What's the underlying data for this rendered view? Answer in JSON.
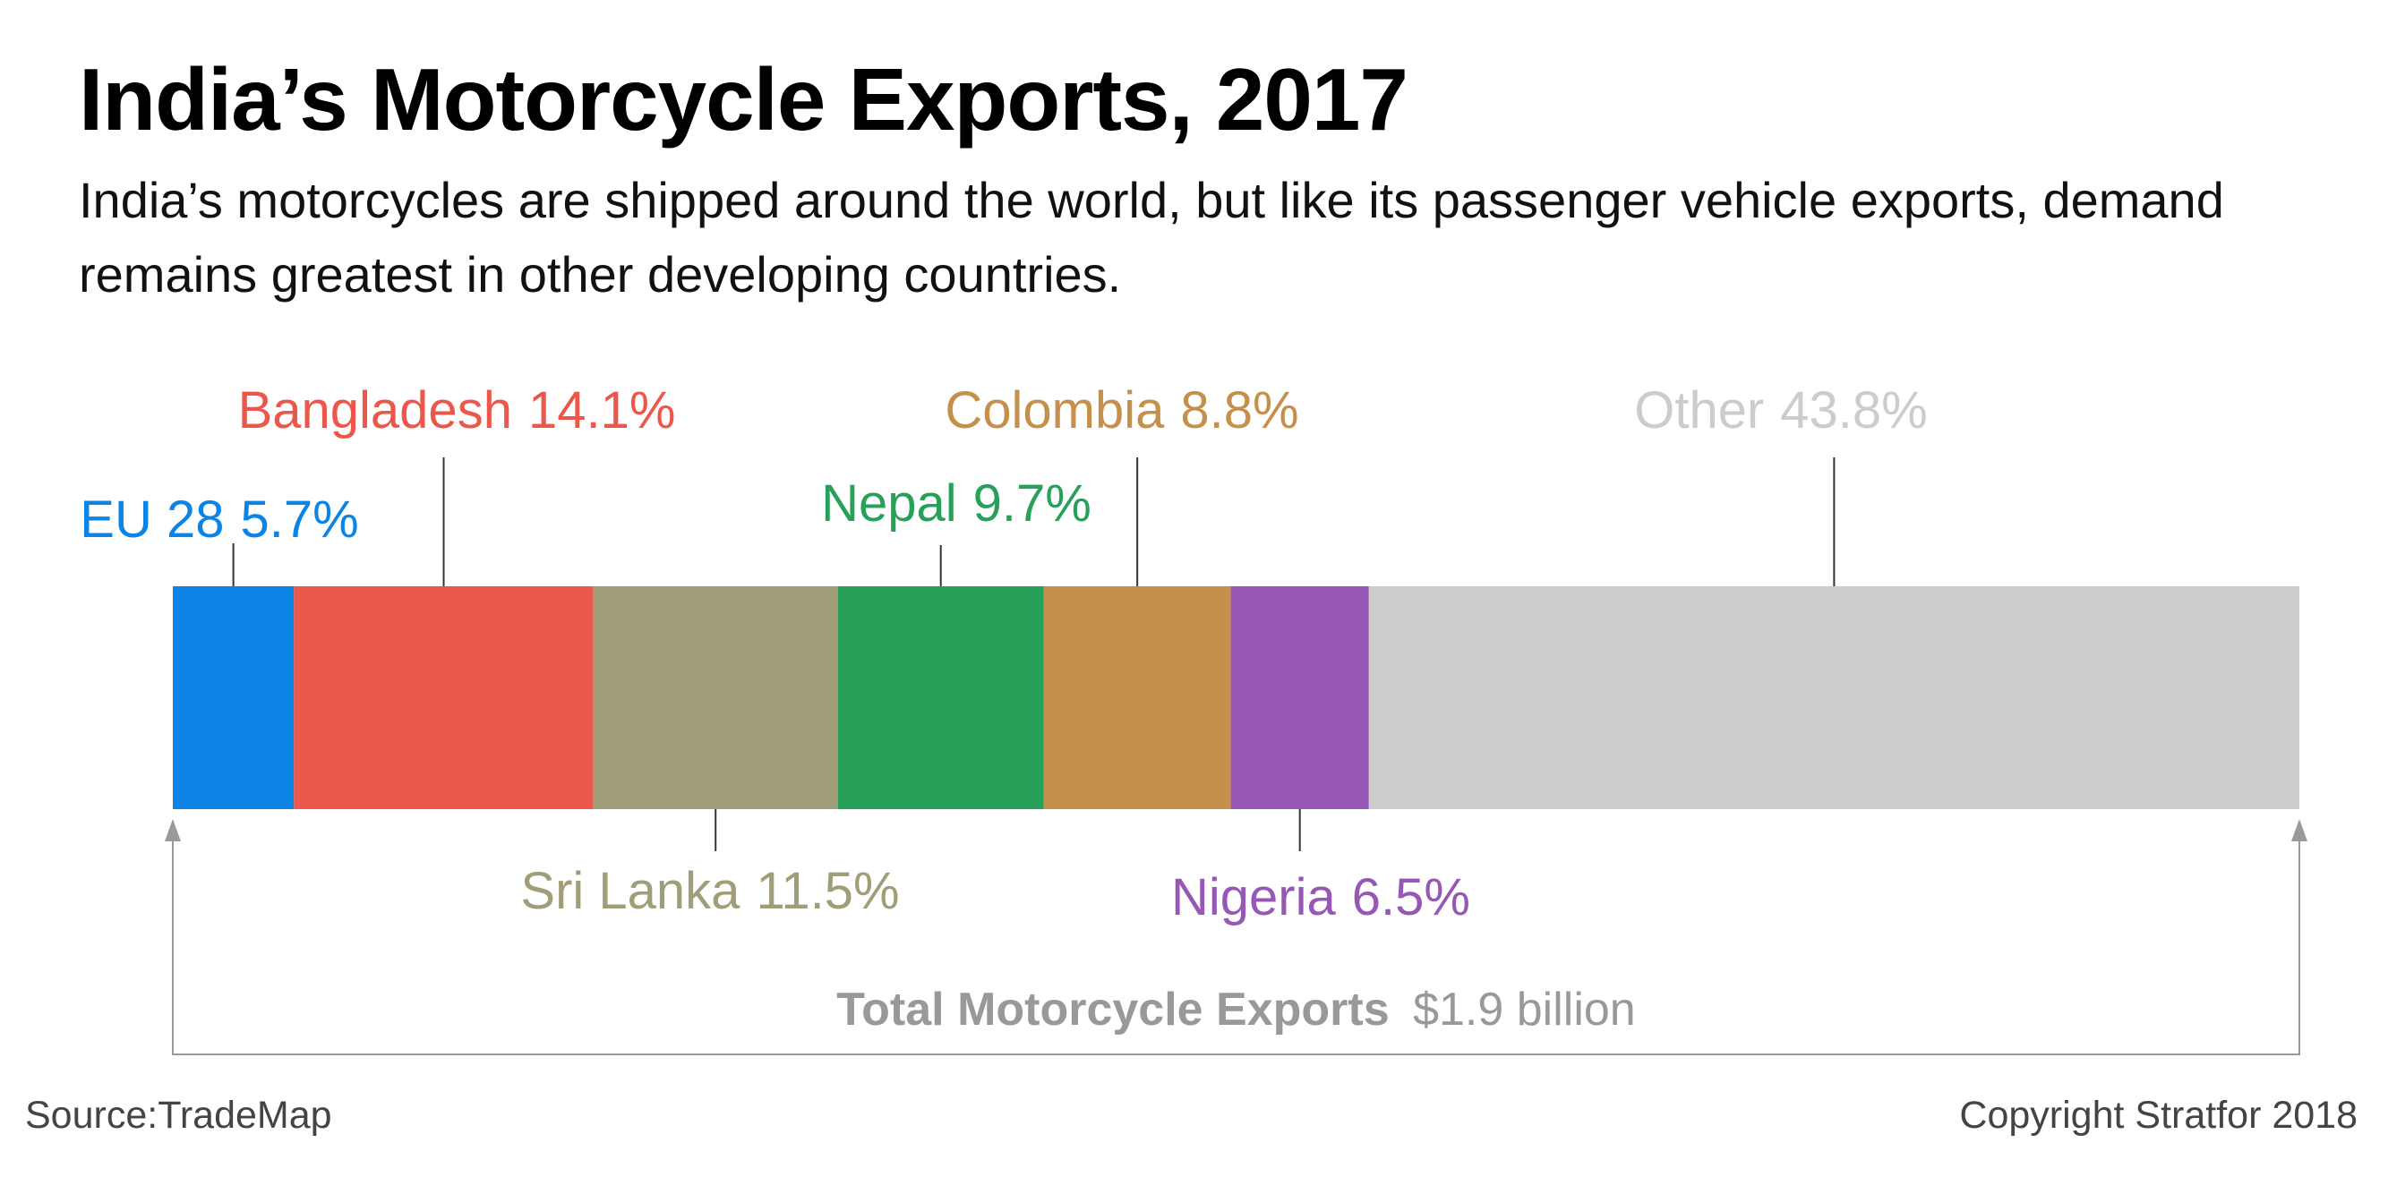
{
  "title": "India’s Motorcycle Exports, 2017",
  "subtitle": "India’s motorcycles are shipped around the world, but like its passenger vehicle exports, demand remains greatest in other developing countries.",
  "colors": {
    "eu": "#0b84e6",
    "bangladesh": "#eb574a",
    "sri_lanka": "#a09e78",
    "nepal": "#27a059",
    "colombia": "#c58f4c",
    "nigeria": "#9658b4",
    "other": "#cccccc",
    "total_text": "#999999",
    "leader": "#333333",
    "bracket": "#9a9a9a"
  },
  "chart_data": {
    "type": "bar",
    "orientation": "horizontal",
    "stacked": true,
    "unit": "%",
    "categories": [
      "EU 28",
      "Bangladesh",
      "Sri Lanka",
      "Nepal",
      "Colombia",
      "Nigeria",
      "Other"
    ],
    "values": [
      5.7,
      14.1,
      11.5,
      9.7,
      8.8,
      6.5,
      43.8
    ],
    "labels": [
      "5.7%",
      "14.1%",
      "11.5%",
      "9.7%",
      "8.8%",
      "6.5%",
      "43.8%"
    ],
    "color_keys": [
      "eu",
      "bangladesh",
      "sri_lanka",
      "nepal",
      "colombia",
      "nigeria",
      "other"
    ],
    "label_position": [
      "above",
      "above",
      "below",
      "above",
      "above",
      "below",
      "above"
    ],
    "total": {
      "label": "Total Motorcycle Exports",
      "value": "$1.9 billion"
    }
  },
  "footer": {
    "source": "Source:TradeMap",
    "copyright": "Copyright Stratfor 2018"
  }
}
